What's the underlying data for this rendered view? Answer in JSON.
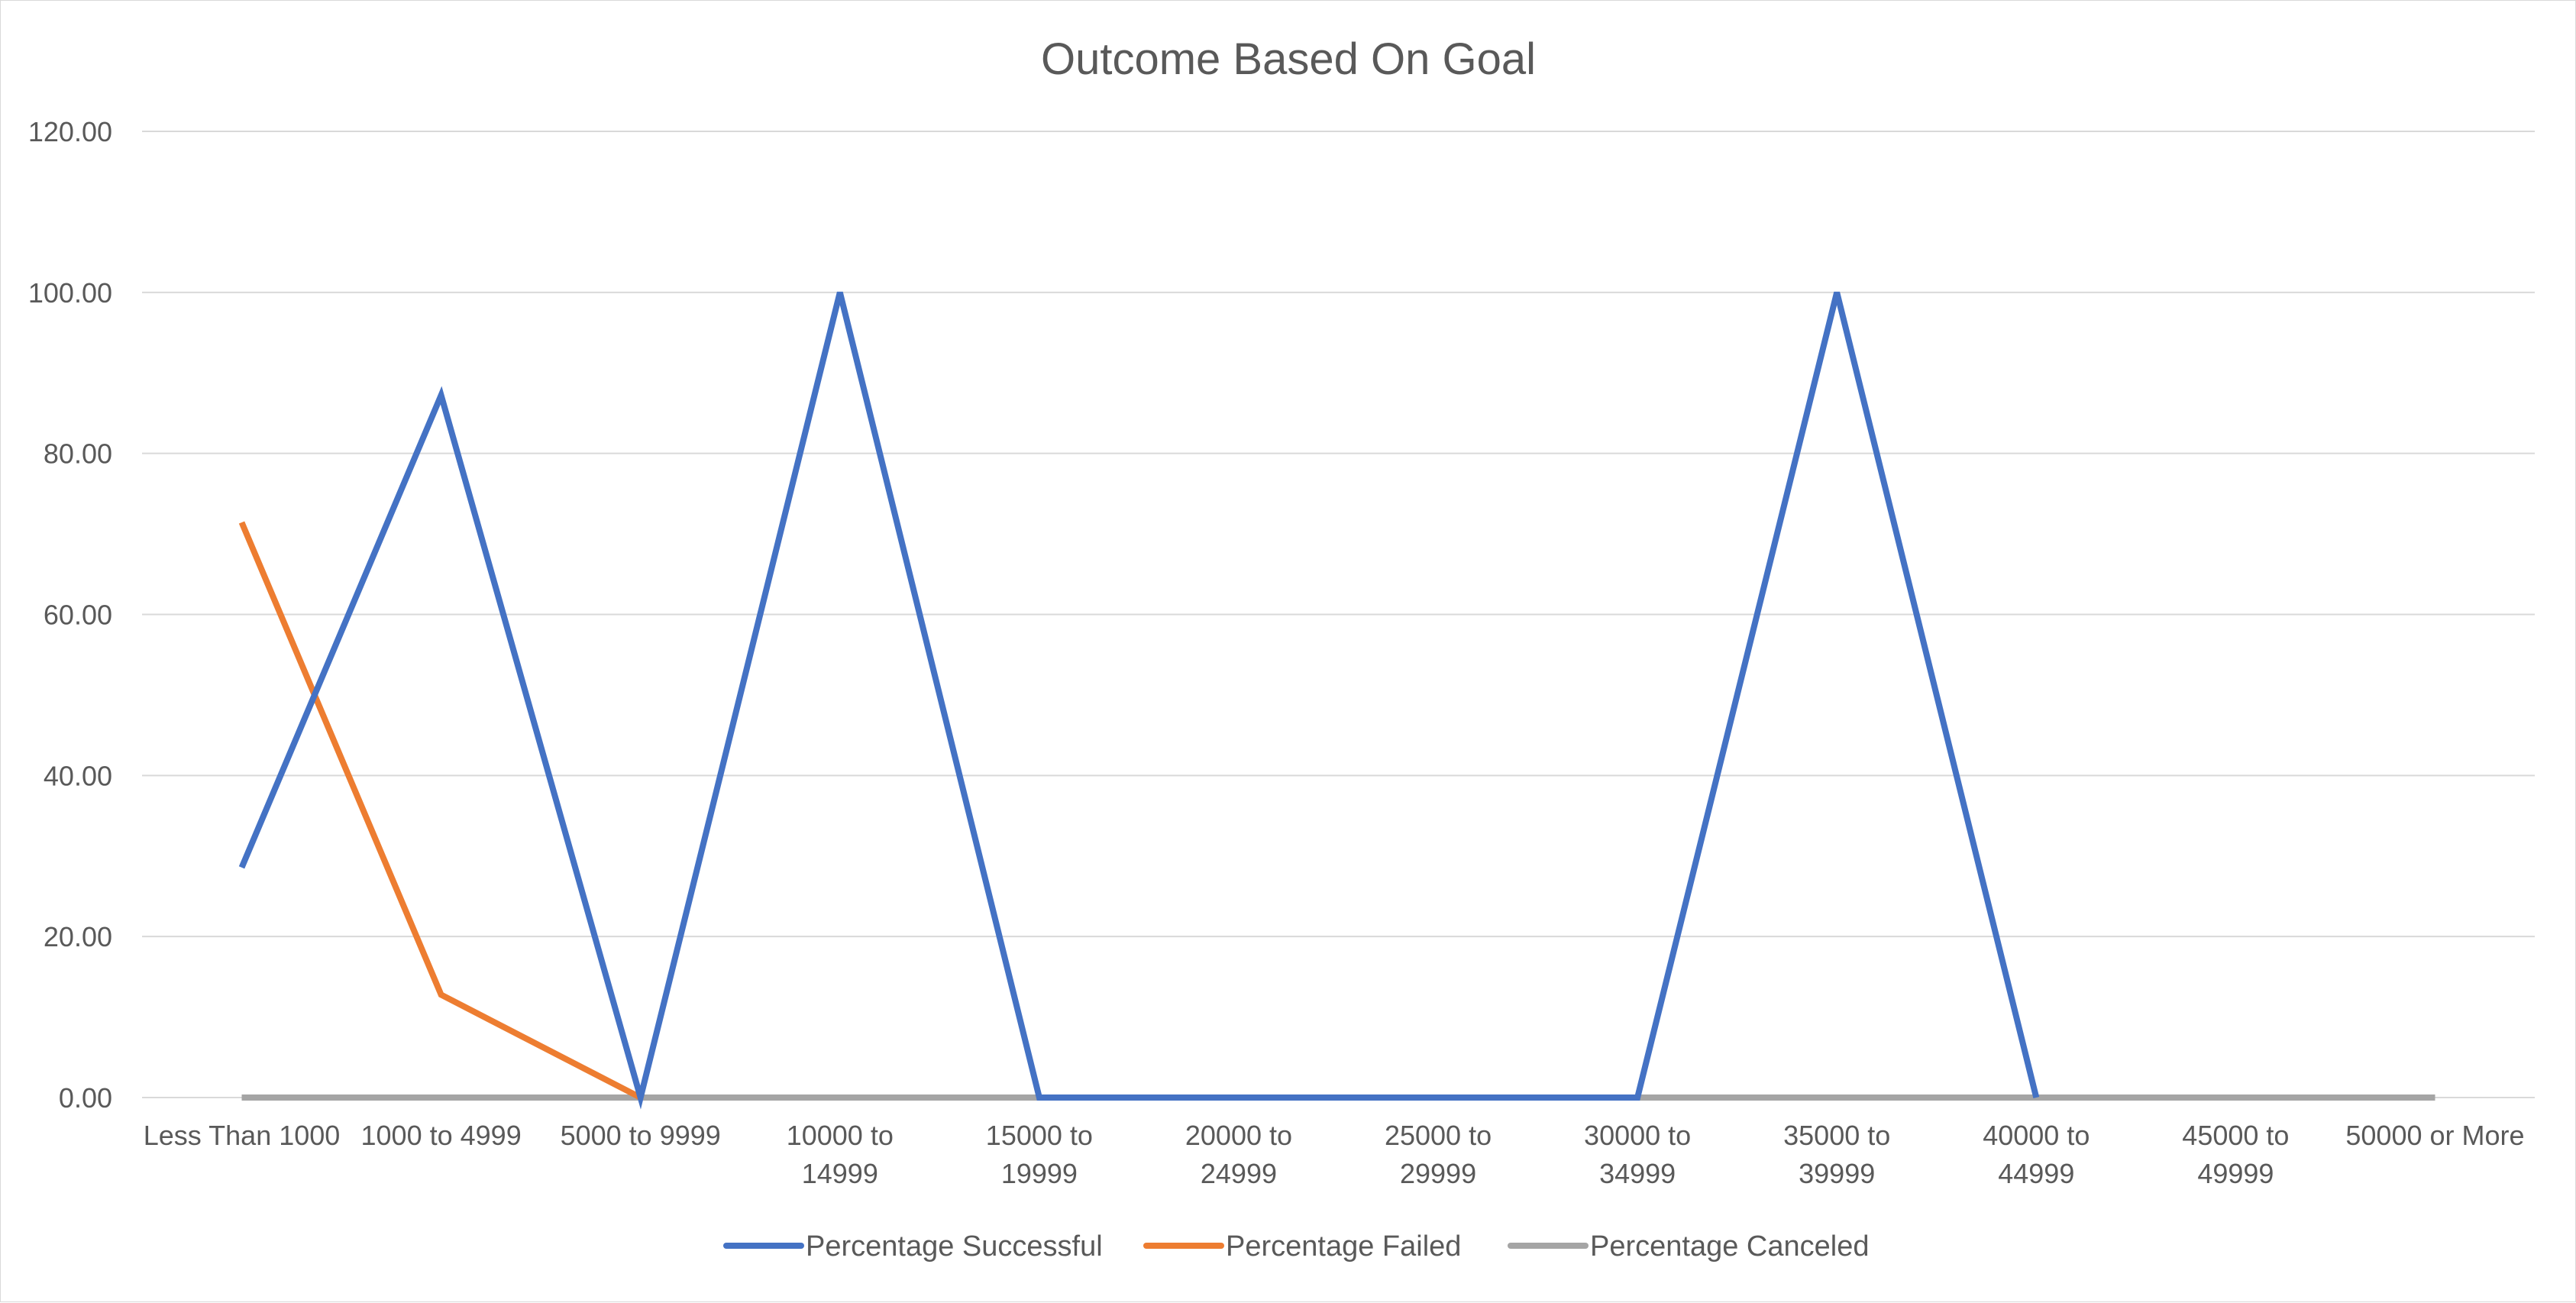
{
  "chart_data": {
    "type": "line",
    "title": "Outcome Based On Goal",
    "xlabel": "",
    "ylabel": "",
    "ylim": [
      0,
      120
    ],
    "y_ticks": [
      "0.00",
      "20.00",
      "40.00",
      "60.00",
      "80.00",
      "100.00",
      "120.00"
    ],
    "grid": true,
    "legend_position": "bottom",
    "categories": [
      "Less Than 1000",
      "1000 to 4999",
      "5000 to 9999",
      "10000 to 14999",
      "15000 to 19999",
      "20000 to 24999",
      "25000 to 29999",
      "30000 to 34999",
      "35000 to 39999",
      "40000 to 44999",
      "45000 to 49999",
      "50000 or More"
    ],
    "series": [
      {
        "name": "Percentage Successful",
        "color": "#4472c4",
        "values": [
          28.57,
          87.23,
          0,
          100,
          0,
          0,
          0,
          0,
          100,
          0,
          null,
          null
        ]
      },
      {
        "name": "Percentage Failed",
        "color": "#ed7d31",
        "values": [
          71.43,
          12.77,
          0,
          null,
          null,
          null,
          null,
          null,
          null,
          null,
          null,
          null
        ]
      },
      {
        "name": "Percentage Canceled",
        "color": "#a5a5a5",
        "values": [
          0,
          0,
          0,
          0,
          0,
          0,
          0,
          0,
          0,
          0,
          0,
          0
        ]
      }
    ]
  }
}
